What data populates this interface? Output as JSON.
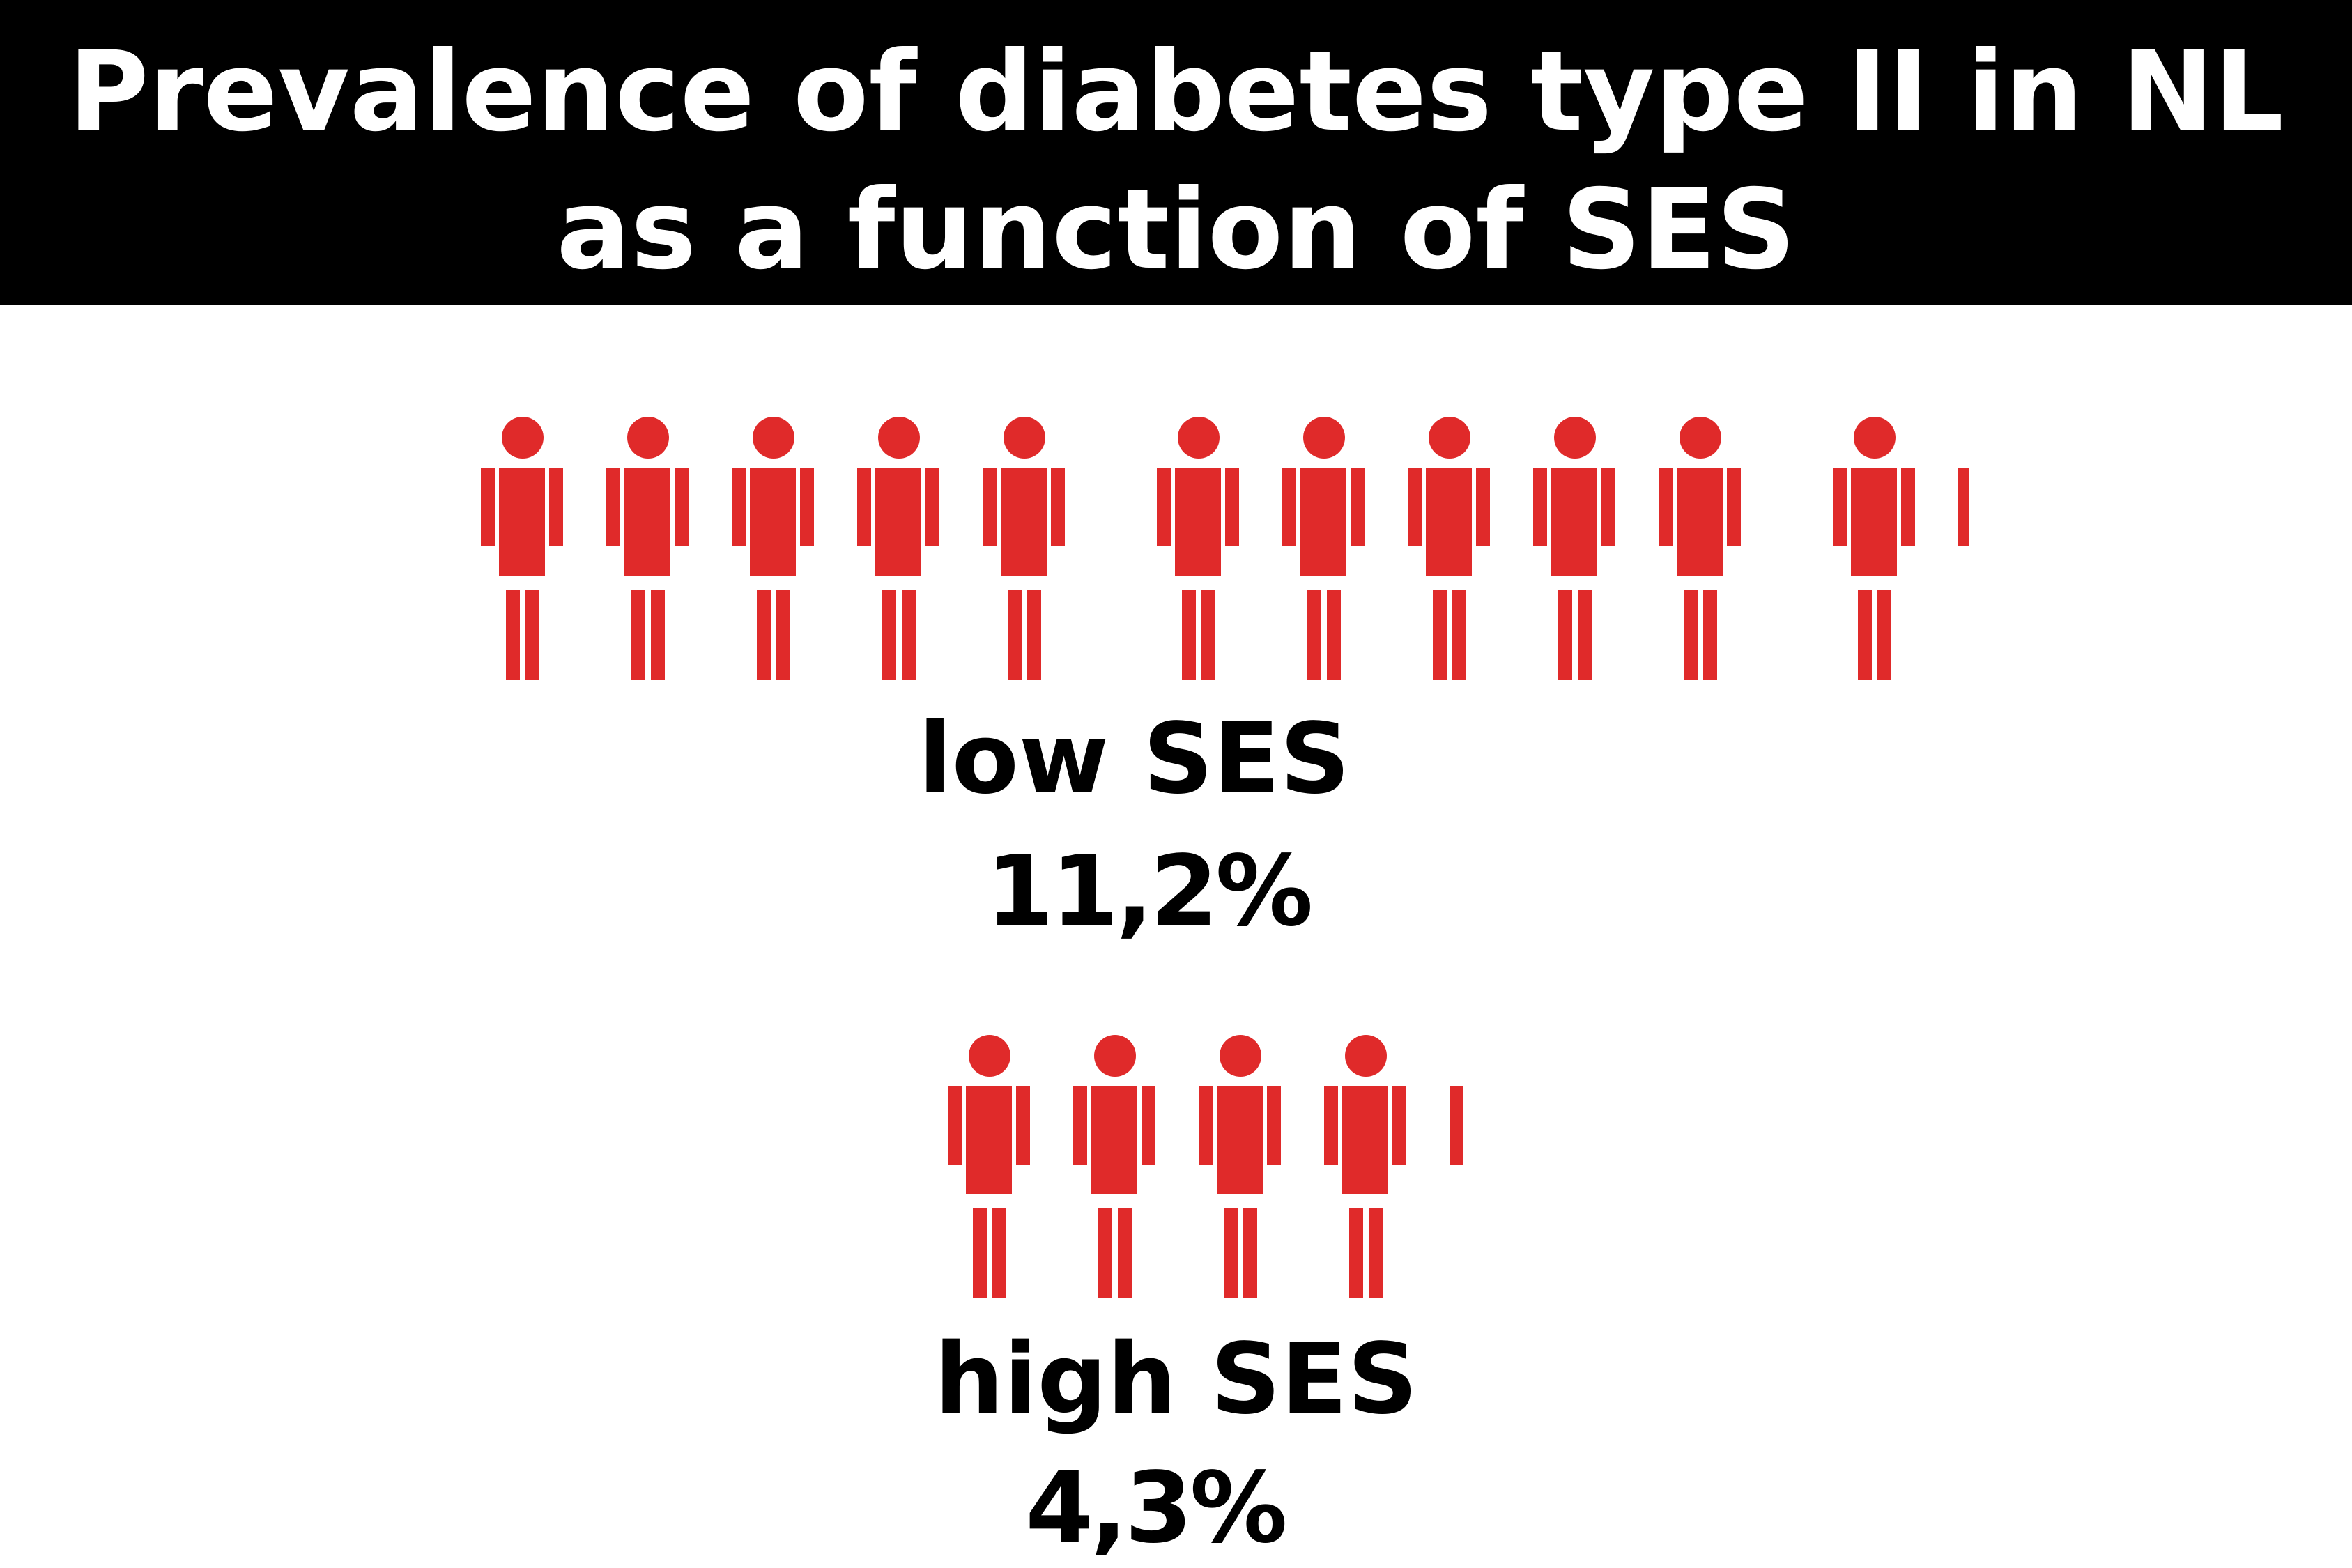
{
  "title": {
    "line1": "Prevalence of diabetes type II in NL",
    "line2": "as a function of SES"
  },
  "colors": {
    "figure": "#e02a2a",
    "title_background": "#000000",
    "title_text": "#ffffff",
    "label_text": "#000000"
  },
  "chart_data": {
    "type": "pictogram",
    "unit": "%",
    "icon": "person-icon",
    "groups": [
      {
        "name": "low SES",
        "value": 11.2,
        "display": "11,2%"
      },
      {
        "name": "high SES",
        "value": 4.3,
        "display": "4,3%"
      }
    ]
  }
}
